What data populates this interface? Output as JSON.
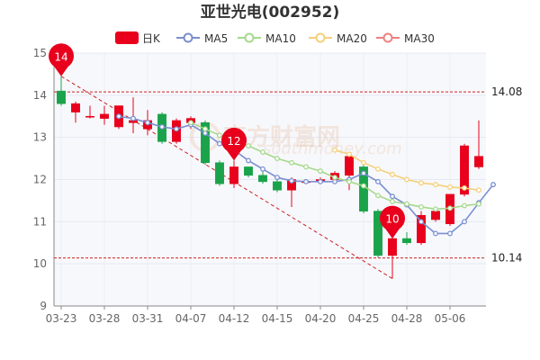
{
  "chart_data": {
    "type": "candlestick",
    "title": "亚世光电(002952)",
    "legend": [
      {
        "name": "日K",
        "color": "#e8001c",
        "kind": "candle"
      },
      {
        "name": "MA5",
        "color": "#7b8fd0",
        "kind": "line"
      },
      {
        "name": "MA10",
        "color": "#a6d98c",
        "kind": "line"
      },
      {
        "name": "MA20",
        "color": "#f5d07a",
        "kind": "line"
      },
      {
        "name": "MA30",
        "color": "#f08080",
        "kind": "line"
      }
    ],
    "up_color": "#e8001c",
    "down_color": "#1aa34a",
    "ylim": [
      9,
      15
    ],
    "yticks": [
      9,
      10,
      11,
      12,
      13,
      14,
      15
    ],
    "xtick_labels": [
      {
        "index": 0,
        "label": "03-23"
      },
      {
        "index": 3,
        "label": "03-28"
      },
      {
        "index": 6,
        "label": "03-31"
      },
      {
        "index": 9,
        "label": "04-07"
      },
      {
        "index": 12,
        "label": "04-12"
      },
      {
        "index": 15,
        "label": "04-15"
      },
      {
        "index": 18,
        "label": "04-20"
      },
      {
        "index": 21,
        "label": "04-25"
      },
      {
        "index": 24,
        "label": "04-28"
      },
      {
        "index": 27,
        "label": "05-06"
      }
    ],
    "candles": [
      {
        "open": 14.1,
        "close": 13.8,
        "high": 14.45,
        "low": 13.75
      },
      {
        "open": 13.6,
        "close": 13.8,
        "high": 13.85,
        "low": 13.35
      },
      {
        "open": 13.5,
        "close": 13.5,
        "high": 13.75,
        "low": 13.45
      },
      {
        "open": 13.45,
        "close": 13.55,
        "high": 13.75,
        "low": 13.3
      },
      {
        "open": 13.25,
        "close": 13.75,
        "high": 13.75,
        "low": 13.2
      },
      {
        "open": 13.35,
        "close": 13.4,
        "high": 13.95,
        "low": 13.1
      },
      {
        "open": 13.2,
        "close": 13.4,
        "high": 13.65,
        "low": 13.05
      },
      {
        "open": 13.55,
        "close": 12.9,
        "high": 13.6,
        "low": 12.85
      },
      {
        "open": 12.9,
        "close": 13.4,
        "high": 13.45,
        "low": 12.85
      },
      {
        "open": 13.35,
        "close": 13.45,
        "high": 13.5,
        "low": 13.2
      },
      {
        "open": 13.35,
        "close": 12.4,
        "high": 13.4,
        "low": 12.35
      },
      {
        "open": 12.4,
        "close": 11.9,
        "high": 12.45,
        "low": 11.85
      },
      {
        "open": 11.9,
        "close": 12.3,
        "high": 12.45,
        "low": 11.8
      },
      {
        "open": 12.3,
        "close": 12.1,
        "high": 12.3,
        "low": 12.05
      },
      {
        "open": 12.1,
        "close": 11.95,
        "high": 12.2,
        "low": 11.9
      },
      {
        "open": 11.95,
        "close": 11.75,
        "high": 12.0,
        "low": 11.7
      },
      {
        "open": 11.75,
        "close": 12.0,
        "high": 12.05,
        "low": 11.35
      },
      {
        "open": 11.95,
        "close": 11.95,
        "high": 12.0,
        "low": 11.9
      },
      {
        "open": 11.95,
        "close": 12.0,
        "high": 12.05,
        "low": 11.9
      },
      {
        "open": 12.0,
        "close": 12.15,
        "high": 12.2,
        "low": 11.95
      },
      {
        "open": 12.1,
        "close": 12.55,
        "high": 12.6,
        "low": 11.75
      },
      {
        "open": 12.3,
        "close": 11.25,
        "high": 12.35,
        "low": 11.2
      },
      {
        "open": 11.25,
        "close": 10.2,
        "high": 11.3,
        "low": 10.15
      },
      {
        "open": 10.2,
        "close": 10.6,
        "high": 10.65,
        "low": 9.65
      },
      {
        "open": 10.6,
        "close": 10.5,
        "high": 10.75,
        "low": 10.45
      },
      {
        "open": 10.5,
        "close": 11.15,
        "high": 11.25,
        "low": 10.45
      },
      {
        "open": 11.05,
        "close": 11.25,
        "high": 11.3,
        "low": 11.0
      },
      {
        "open": 10.95,
        "close": 11.65,
        "high": 11.65,
        "low": 10.9
      },
      {
        "open": 11.65,
        "close": 12.8,
        "high": 12.85,
        "low": 11.6
      },
      {
        "open": 12.3,
        "close": 12.55,
        "high": 13.4,
        "low": 12.25
      }
    ],
    "ma_lines": [
      {
        "name": "MA5",
        "start_index": 4,
        "values": [
          13.5,
          13.45,
          13.35,
          13.25,
          13.2,
          13.3,
          13.1,
          12.85,
          12.7,
          12.45,
          12.25,
          12.05,
          11.97,
          11.95,
          11.95,
          11.95,
          12.0,
          12.15,
          11.95,
          11.6,
          11.4,
          11.0,
          10.72,
          10.72,
          11.0,
          11.45,
          11.88
        ]
      },
      {
        "name": "MA10",
        "start_index": 9,
        "values": [
          13.35,
          13.2,
          13.05,
          12.95,
          12.8,
          12.65,
          12.5,
          12.4,
          12.3,
          12.2,
          12.05,
          11.95,
          11.85,
          11.62,
          11.48,
          11.42,
          11.35,
          11.3,
          11.32,
          11.38,
          11.42
        ]
      },
      {
        "name": "MA20",
        "start_index": 19,
        "values": [
          12.7,
          12.6,
          12.4,
          12.25,
          12.12,
          12.0,
          11.92,
          11.88,
          11.82,
          11.8,
          11.75
        ]
      }
    ],
    "reference_lines": [
      {
        "value": 14.08,
        "label": "14.08"
      },
      {
        "value": 10.14,
        "label": "10.14"
      }
    ],
    "trend_line": {
      "from_index": 0,
      "from_value": 14.45,
      "to_index": 23,
      "to_value": 9.65
    },
    "markers": [
      {
        "index": 0,
        "value": 14.45,
        "label": "14"
      },
      {
        "index": 12,
        "value": 12.45,
        "label": "12"
      },
      {
        "index": 23,
        "value": 10.6,
        "label": "10"
      }
    ],
    "watermark": "南方财富网",
    "watermark_sub": "southmoney.com"
  }
}
